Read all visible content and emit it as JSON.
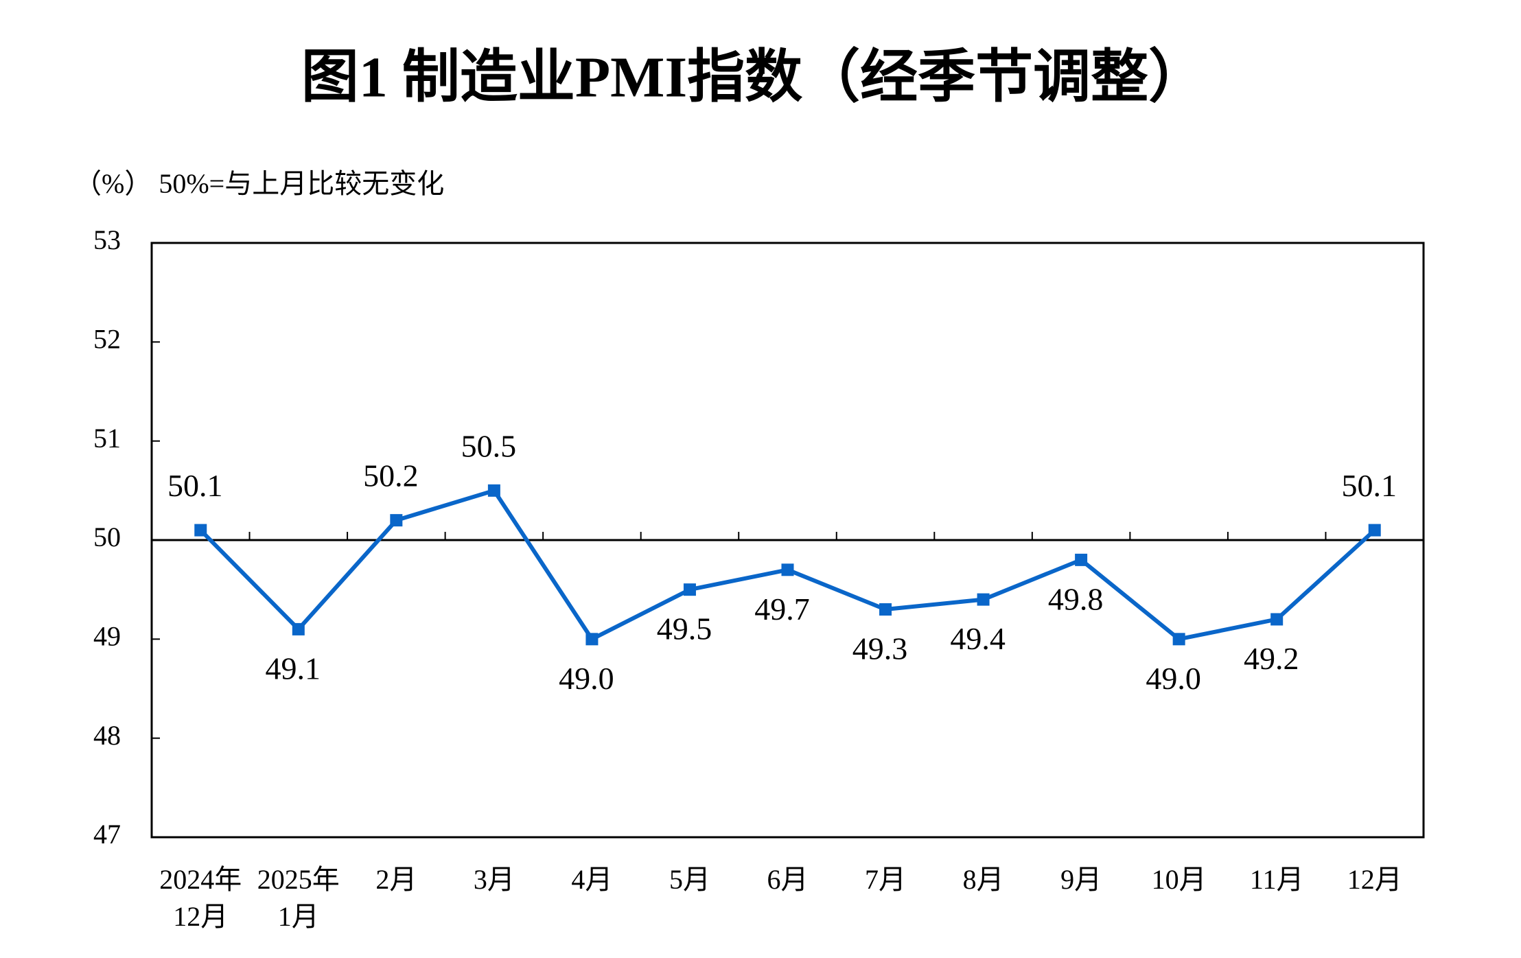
{
  "chart_data": {
    "type": "line",
    "title": "图1  制造业PMI指数（经季节调整）",
    "subtitle": "（%）  50%=与上月比较无变化",
    "categories": [
      [
        "2024年",
        "12月"
      ],
      [
        "2025年",
        "1月"
      ],
      [
        "2月"
      ],
      [
        "3月"
      ],
      [
        "4月"
      ],
      [
        "5月"
      ],
      [
        "6月"
      ],
      [
        "7月"
      ],
      [
        "8月"
      ],
      [
        "9月"
      ],
      [
        "10月"
      ],
      [
        "11月"
      ],
      [
        "12月"
      ]
    ],
    "series": [
      {
        "color": "#0a66c9",
        "values": [
          50.1,
          49.1,
          50.2,
          50.5,
          49.0,
          49.5,
          49.7,
          49.3,
          49.4,
          49.8,
          49.0,
          49.2,
          50.1
        ],
        "value_labels": [
          "50.1",
          "49.1",
          "50.2",
          "50.5",
          "49.0",
          "49.5",
          "49.7",
          "49.3",
          "49.4",
          "49.8",
          "49.0",
          "49.2",
          "50.1"
        ]
      }
    ],
    "ylim": [
      47,
      53
    ],
    "yticks": [
      47,
      48,
      49,
      50,
      51,
      52,
      53
    ],
    "reference_line": 50,
    "grid": false
  }
}
